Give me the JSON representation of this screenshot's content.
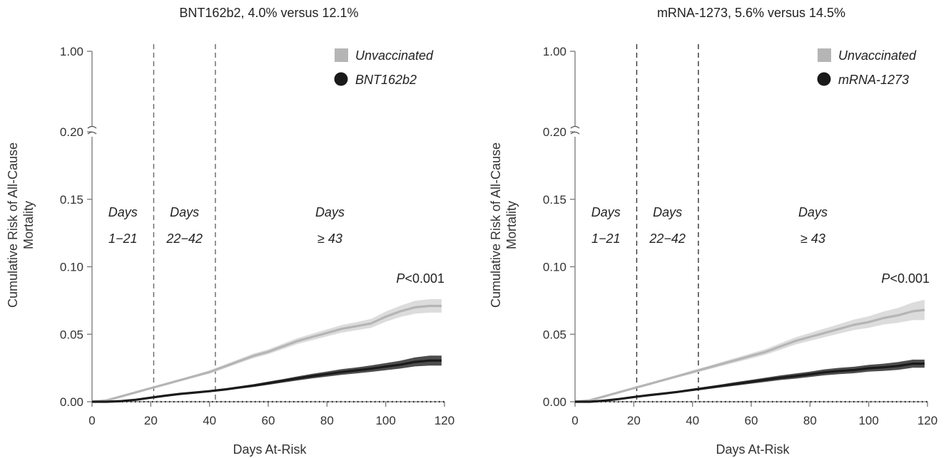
{
  "chart_data": [
    {
      "type": "line",
      "title": "BNT162b2, 4.0% versus 12.1%",
      "xlabel": "Days At-Risk",
      "ylabel": [
        "Cumulative Risk of All-Cause",
        "Mortality"
      ],
      "xlim": [
        0,
        120
      ],
      "ylim": [
        0,
        1.0
      ],
      "axis_break": [
        0.2,
        1.0
      ],
      "x_ticks": [
        "0",
        "20",
        "40",
        "60",
        "80",
        "100",
        "120"
      ],
      "y_ticks": [
        "0.00",
        "0.05",
        "0.10",
        "0.15",
        "0.20",
        "1.00"
      ],
      "vlines": [
        21,
        42
      ],
      "periods": [
        {
          "line1": "Days",
          "line2": "1−21",
          "x": 10.5
        },
        {
          "line1": "Days",
          "line2": "22−42",
          "x": 31.5
        },
        {
          "line1": "Days",
          "line2": "≥ 43",
          "x": 81
        }
      ],
      "pvalue": {
        "italic": "P",
        "rest": "<0.001"
      },
      "legend_position": "top-right",
      "series": [
        {
          "name": "Unvaccinated",
          "color": "#b5b5b5",
          "band_color": "#dcdcdc",
          "marker": "square",
          "x": [
            0,
            5,
            10,
            15,
            20,
            25,
            30,
            35,
            40,
            45,
            50,
            55,
            60,
            65,
            70,
            75,
            80,
            85,
            90,
            95,
            100,
            105,
            110,
            115,
            119
          ],
          "y": [
            0.0,
            0.001,
            0.004,
            0.007,
            0.01,
            0.013,
            0.016,
            0.019,
            0.022,
            0.026,
            0.03,
            0.034,
            0.037,
            0.041,
            0.045,
            0.048,
            0.051,
            0.054,
            0.056,
            0.058,
            0.063,
            0.067,
            0.07,
            0.071,
            0.071
          ],
          "lo": [
            0.0,
            0.001,
            0.0035,
            0.0065,
            0.0093,
            0.0122,
            0.0151,
            0.018,
            0.0208,
            0.0246,
            0.0285,
            0.0323,
            0.0352,
            0.039,
            0.0428,
            0.0456,
            0.0484,
            0.0512,
            0.053,
            0.0547,
            0.0592,
            0.0628,
            0.0652,
            0.066,
            0.066
          ],
          "hi": [
            0.0,
            0.001,
            0.0045,
            0.0075,
            0.0107,
            0.0138,
            0.0169,
            0.02,
            0.0232,
            0.0274,
            0.0315,
            0.0357,
            0.0388,
            0.043,
            0.0472,
            0.0504,
            0.0536,
            0.0568,
            0.059,
            0.0613,
            0.0668,
            0.0712,
            0.0748,
            0.076,
            0.076
          ]
        },
        {
          "name": "BNT162b2",
          "color": "#1a1a1a",
          "band_color": "#4d4d4d",
          "marker": "circle",
          "x": [
            0,
            5,
            10,
            15,
            20,
            25,
            30,
            35,
            40,
            45,
            50,
            55,
            60,
            65,
            70,
            75,
            80,
            85,
            90,
            95,
            100,
            105,
            110,
            115,
            119
          ],
          "y": [
            0.0,
            0.0,
            0.0005,
            0.0015,
            0.003,
            0.0045,
            0.0058,
            0.0068,
            0.0078,
            0.009,
            0.0105,
            0.012,
            0.0137,
            0.0155,
            0.0173,
            0.019,
            0.0205,
            0.022,
            0.0232,
            0.0245,
            0.026,
            0.0275,
            0.0295,
            0.0305,
            0.0305
          ],
          "lo": [
            0.0,
            0.0,
            0.0004,
            0.0013,
            0.0027,
            0.0041,
            0.0053,
            0.0062,
            0.0071,
            0.0082,
            0.0096,
            0.011,
            0.0125,
            0.0142,
            0.0158,
            0.0173,
            0.0186,
            0.0199,
            0.021,
            0.0221,
            0.0234,
            0.0246,
            0.0262,
            0.0268,
            0.0268
          ],
          "hi": [
            0.0,
            0.0,
            0.0006,
            0.0017,
            0.0033,
            0.0049,
            0.0063,
            0.0074,
            0.0085,
            0.0098,
            0.0114,
            0.013,
            0.0149,
            0.0168,
            0.0188,
            0.0207,
            0.0224,
            0.0241,
            0.0254,
            0.0269,
            0.0286,
            0.0304,
            0.0328,
            0.0342,
            0.0342
          ]
        }
      ]
    },
    {
      "type": "line",
      "title": "mRNA-1273, 5.6% versus 14.5%",
      "xlabel": "Days At-Risk",
      "ylabel": [
        "Cumulative Risk of All-Cause",
        "Mortality"
      ],
      "xlim": [
        0,
        120
      ],
      "ylim": [
        0,
        1.0
      ],
      "axis_break": [
        0.2,
        1.0
      ],
      "x_ticks": [
        "0",
        "20",
        "40",
        "60",
        "80",
        "100",
        "120"
      ],
      "y_ticks": [
        "0.00",
        "0.05",
        "0.10",
        "0.15",
        "0.20",
        "1.00"
      ],
      "vlines": [
        21,
        42
      ],
      "periods": [
        {
          "line1": "Days",
          "line2": "1−21",
          "x": 10.5
        },
        {
          "line1": "Days",
          "line2": "22−42",
          "x": 31.5
        },
        {
          "line1": "Days",
          "line2": "≥ 43",
          "x": 81
        }
      ],
      "pvalue": {
        "italic": "P",
        "rest": "<0.001"
      },
      "legend_position": "top-right",
      "series": [
        {
          "name": "Unvaccinated",
          "color": "#b5b5b5",
          "band_color": "#dcdcdc",
          "marker": "square",
          "x": [
            0,
            5,
            10,
            15,
            20,
            25,
            30,
            35,
            40,
            45,
            50,
            55,
            60,
            65,
            70,
            75,
            80,
            85,
            90,
            95,
            100,
            105,
            110,
            115,
            119
          ],
          "y": [
            0.0,
            0.001,
            0.004,
            0.007,
            0.01,
            0.013,
            0.016,
            0.019,
            0.022,
            0.025,
            0.028,
            0.031,
            0.034,
            0.037,
            0.041,
            0.045,
            0.048,
            0.051,
            0.054,
            0.057,
            0.059,
            0.062,
            0.064,
            0.067,
            0.068
          ],
          "lo": [
            0.0,
            0.001,
            0.0035,
            0.0065,
            0.0093,
            0.0122,
            0.0151,
            0.018,
            0.0208,
            0.0237,
            0.0265,
            0.0293,
            0.0321,
            0.0349,
            0.0386,
            0.0423,
            0.0451,
            0.0478,
            0.0505,
            0.0531,
            0.0547,
            0.0572,
            0.0585,
            0.0605,
            0.0605
          ],
          "hi": [
            0.0,
            0.001,
            0.0045,
            0.0075,
            0.0107,
            0.0138,
            0.0169,
            0.02,
            0.0232,
            0.0263,
            0.0295,
            0.0327,
            0.0359,
            0.0391,
            0.0434,
            0.0477,
            0.0509,
            0.0542,
            0.0575,
            0.0609,
            0.0633,
            0.0668,
            0.0695,
            0.0735,
            0.0755
          ]
        },
        {
          "name": "mRNA-1273",
          "color": "#1a1a1a",
          "band_color": "#4d4d4d",
          "marker": "circle",
          "x": [
            0,
            5,
            10,
            15,
            20,
            25,
            30,
            35,
            40,
            45,
            50,
            55,
            60,
            65,
            70,
            75,
            80,
            85,
            90,
            95,
            100,
            105,
            110,
            115,
            119
          ],
          "y": [
            0.0,
            0.0,
            0.0008,
            0.002,
            0.0035,
            0.0048,
            0.006,
            0.0073,
            0.0088,
            0.0103,
            0.0118,
            0.0133,
            0.0148,
            0.0163,
            0.0178,
            0.019,
            0.0203,
            0.0218,
            0.0228,
            0.0235,
            0.0248,
            0.0255,
            0.0265,
            0.0282,
            0.0282
          ],
          "lo": [
            0.0,
            0.0,
            0.0007,
            0.0018,
            0.0031,
            0.0043,
            0.0054,
            0.0066,
            0.0079,
            0.0093,
            0.0107,
            0.012,
            0.0134,
            0.0147,
            0.0161,
            0.0171,
            0.0183,
            0.0196,
            0.0205,
            0.0211,
            0.0223,
            0.0228,
            0.0236,
            0.0252,
            0.0252
          ],
          "hi": [
            0.0,
            0.0,
            0.0009,
            0.0022,
            0.0039,
            0.0053,
            0.0066,
            0.008,
            0.0097,
            0.0113,
            0.0129,
            0.0146,
            0.0162,
            0.0179,
            0.0195,
            0.0209,
            0.0223,
            0.024,
            0.0251,
            0.0259,
            0.0273,
            0.0282,
            0.0294,
            0.0312,
            0.0312
          ]
        }
      ]
    }
  ]
}
